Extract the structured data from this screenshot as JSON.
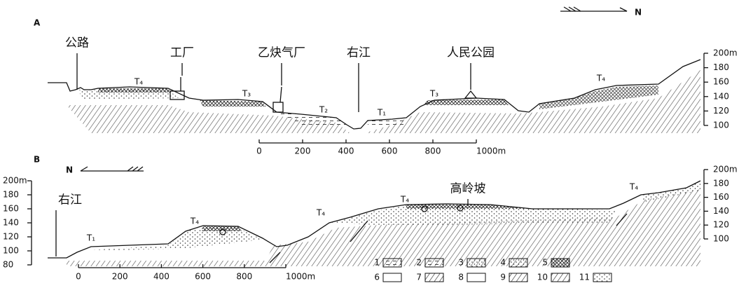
{
  "section_a": {
    "label": "A",
    "north": "N",
    "places": [
      "公路",
      "工厂",
      "乙炔气厂",
      "右江",
      "人民公园"
    ],
    "terraces": [
      "T₄",
      "T₃",
      "T₂",
      "T₁",
      "T₃",
      "T₄"
    ],
    "scale": [
      "0",
      "200",
      "400",
      "600",
      "800",
      "1000m"
    ],
    "elevation": [
      "200m",
      "180",
      "160",
      "140",
      "120",
      "100"
    ]
  },
  "section_b": {
    "label": "B",
    "north": "N",
    "places": [
      "右江",
      "高岭坡"
    ],
    "terraces": [
      "T₁",
      "T₄",
      "T₄",
      "T₄",
      "T₄"
    ],
    "scale": [
      "0",
      "200",
      "400",
      "600",
      "800",
      "1000m"
    ],
    "elevation_left": [
      "200m",
      "180",
      "160",
      "140",
      "120",
      "100",
      "80"
    ],
    "elevation_right": [
      "200m",
      "180",
      "160",
      "140",
      "120",
      "100"
    ]
  },
  "legend": [
    "1",
    "2",
    "3",
    "4",
    "5",
    "6",
    "7",
    "8",
    "9",
    "10",
    "11"
  ]
}
